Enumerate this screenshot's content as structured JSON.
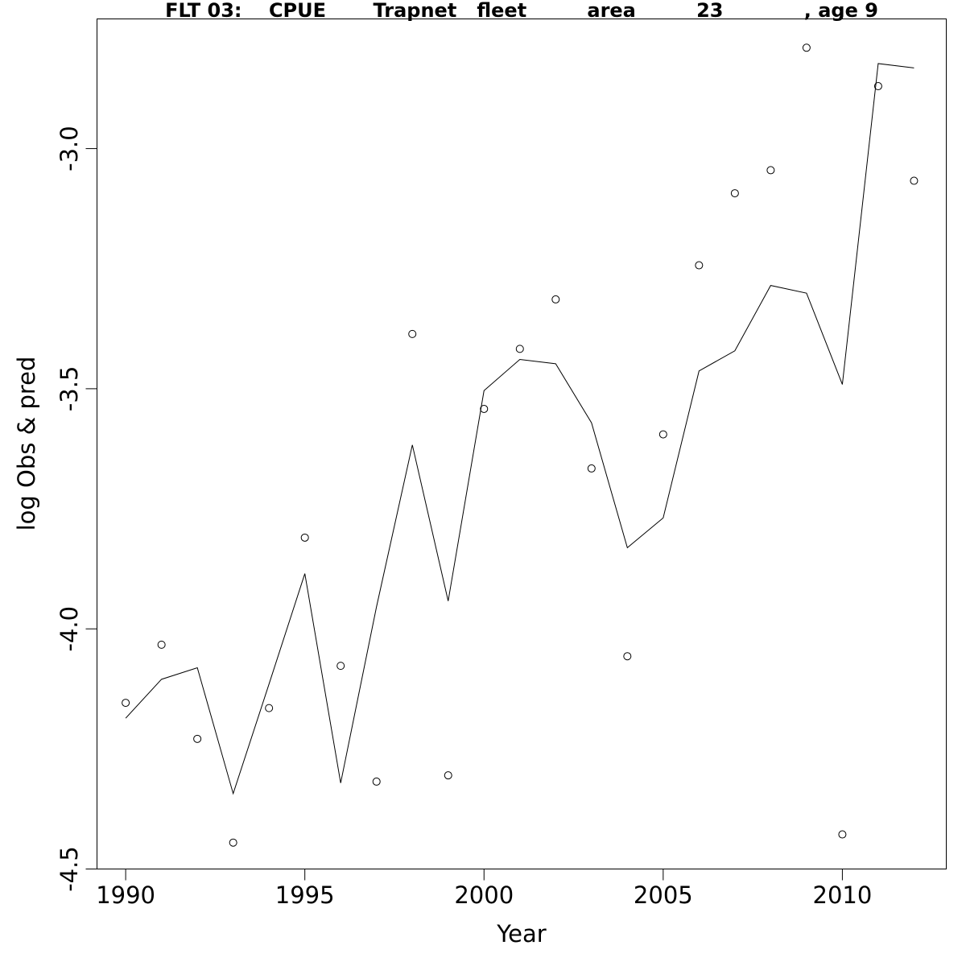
{
  "chart_data": {
    "type": "line",
    "title": "FLT 03:    CPUE       Trapnet   fleet         area         23            , age 9",
    "xlabel": "Year",
    "ylabel": "log Obs & pred",
    "xlim": [
      1989.2,
      2012.9
    ],
    "ylim": [
      -4.5,
      -2.73
    ],
    "x_ticks": [
      1990,
      1995,
      2000,
      2005,
      2010
    ],
    "x_tick_labels": [
      "1990",
      "1995",
      "2000",
      "2005",
      "2010"
    ],
    "y_ticks": [
      -4.5,
      -4.0,
      -3.5,
      -3.0
    ],
    "y_tick_labels": [
      "-4.5",
      "-4.0",
      "-3.5",
      "-3.0"
    ],
    "grid": false,
    "legend": "none",
    "x": [
      1990,
      1991,
      1992,
      1993,
      1994,
      1995,
      1996,
      1997,
      1998,
      1999,
      2000,
      2001,
      2002,
      2003,
      2004,
      2005,
      2006,
      2007,
      2008,
      2009,
      2010,
      2011,
      2012
    ],
    "series": [
      {
        "kind": "line",
        "values": [
          -4.186,
          -4.105,
          -4.081,
          -4.343,
          -4.115,
          -3.885,
          -4.321,
          -3.954,
          -3.617,
          -3.942,
          -3.504,
          -3.439,
          -3.448,
          -3.571,
          -3.831,
          -3.769,
          -3.463,
          -3.421,
          -3.285,
          -3.301,
          -3.491,
          -2.823,
          -2.832
        ]
      },
      {
        "kind": "scatter",
        "marker": "open-circle",
        "values": [
          -4.154,
          -4.033,
          -4.229,
          -4.445,
          -4.165,
          -3.81,
          -4.077,
          -4.318,
          -3.386,
          -4.305,
          -3.542,
          -3.417,
          -3.314,
          -3.666,
          -4.057,
          -3.595,
          -3.243,
          -3.093,
          -3.045,
          -2.79,
          -4.428,
          -2.87,
          -3.067
        ]
      }
    ]
  }
}
